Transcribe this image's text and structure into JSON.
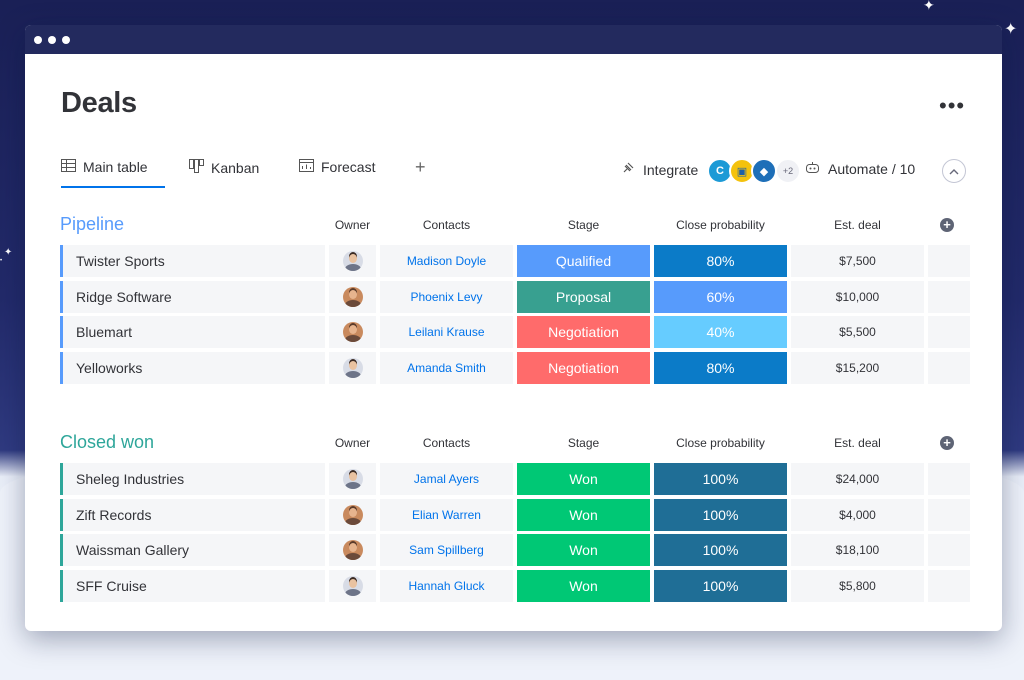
{
  "board": {
    "title": "Deals",
    "more_icon": "more-horizontal-icon"
  },
  "views": {
    "tabs": [
      {
        "label": "Main table",
        "icon": "table-icon",
        "active": true
      },
      {
        "label": "Kanban",
        "icon": "kanban-icon"
      },
      {
        "label": "Forecast",
        "icon": "chart-icon"
      }
    ],
    "add_label": "+"
  },
  "toolbar": {
    "integrate_label": "Integrate",
    "integrate_icon": "plug-icon",
    "apps_more": "+2",
    "automate_label": "Automate / 10",
    "automate_icon": "robot-icon",
    "collapse_icon": "chevron-up-icon"
  },
  "columns": {
    "owner": "Owner",
    "contacts": "Contacts",
    "stage": "Stage",
    "probability": "Close probability",
    "deal": "Est. deal"
  },
  "colors": {
    "pipeline": "#579bfc",
    "closed_won": "#2ea69a",
    "qualified": "#579bfc",
    "proposal": "#38a090",
    "negotiation": "#ff6b6b",
    "won": "#00c875",
    "prob_dark": "#0b7bc8",
    "prob_mid": "#579bfc",
    "prob_light": "#66ccff",
    "prob_won": "#1f6e96"
  },
  "groups": [
    {
      "title": "Pipeline",
      "color": "#579bfc",
      "rows": [
        {
          "name": "Twister Sports",
          "owner": "man-avatar",
          "contact": "Madison Doyle",
          "stage": "Qualified",
          "stage_color": "#579bfc",
          "probability": "80%",
          "prob_color": "#0b7bc8",
          "deal": "$7,500"
        },
        {
          "name": "Ridge Software",
          "owner": "woman-avatar",
          "contact": "Phoenix Levy",
          "stage": "Proposal",
          "stage_color": "#38a090",
          "probability": "60%",
          "prob_color": "#579bfc",
          "deal": "$10,000"
        },
        {
          "name": "Bluemart",
          "owner": "woman-avatar",
          "contact": "Leilani Krause",
          "stage": "Negotiation",
          "stage_color": "#ff6b6b",
          "probability": "40%",
          "prob_color": "#66ccff",
          "deal": "$5,500"
        },
        {
          "name": "Yelloworks",
          "owner": "man-avatar",
          "contact": "Amanda Smith",
          "stage": "Negotiation",
          "stage_color": "#ff6b6b",
          "probability": "80%",
          "prob_color": "#0b7bc8",
          "deal": "$15,200"
        }
      ]
    },
    {
      "title": "Closed won",
      "color": "#2ea69a",
      "rows": [
        {
          "name": "Sheleg Industries",
          "owner": "man-avatar",
          "contact": "Jamal Ayers",
          "stage": "Won",
          "stage_color": "#00c875",
          "probability": "100%",
          "prob_color": "#1f6e96",
          "deal": "$24,000"
        },
        {
          "name": "Zift Records",
          "owner": "woman-avatar",
          "contact": "Elian Warren",
          "stage": "Won",
          "stage_color": "#00c875",
          "probability": "100%",
          "prob_color": "#1f6e96",
          "deal": "$4,000"
        },
        {
          "name": "Waissman Gallery",
          "owner": "woman-avatar",
          "contact": "Sam Spillberg",
          "stage": "Won",
          "stage_color": "#00c875",
          "probability": "100%",
          "prob_color": "#1f6e96",
          "deal": "$18,100"
        },
        {
          "name": "SFF Cruise",
          "owner": "man-avatar",
          "contact": "Hannah Gluck",
          "stage": "Won",
          "stage_color": "#00c875",
          "probability": "100%",
          "prob_color": "#1f6e96",
          "deal": "$5,800"
        }
      ]
    }
  ]
}
